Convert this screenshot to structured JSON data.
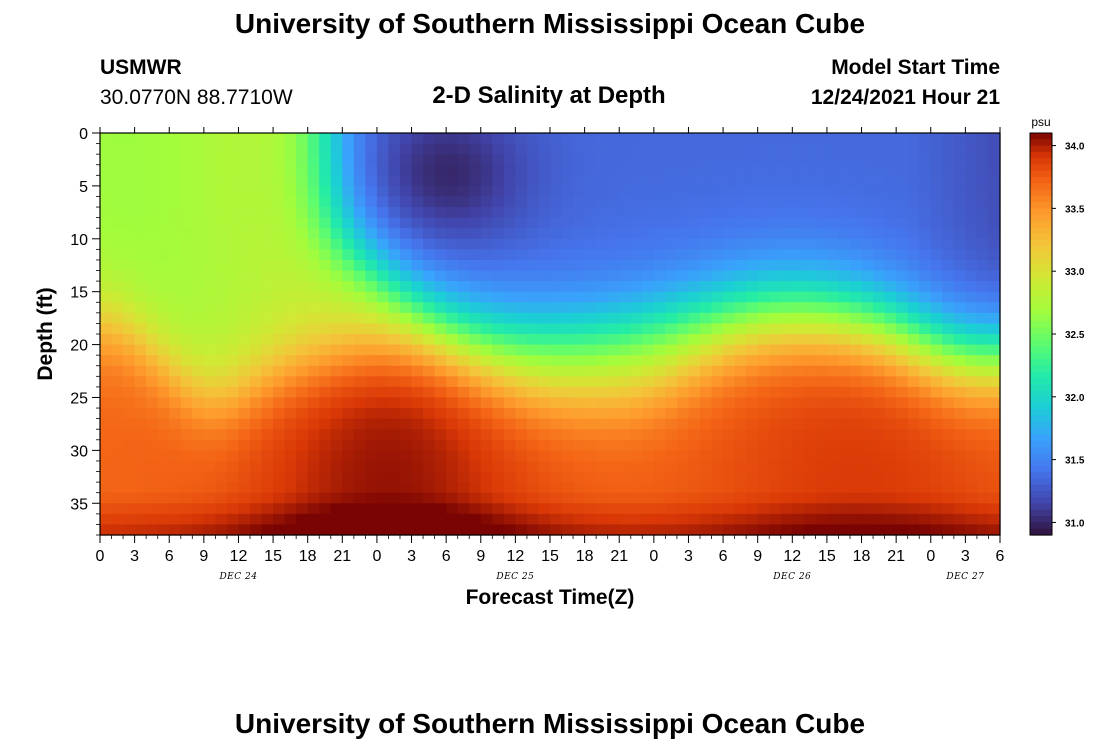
{
  "header": {
    "title": "University of Southern Mississippi Ocean Cube",
    "station": "USMWR",
    "coords": "30.0770N  88.7710W",
    "subtitle": "2-D Salinity at Depth",
    "start_label": "Model Start Time",
    "start_value": "12/24/2021 Hour 21"
  },
  "footer": {
    "title": "University of Southern Mississippi Ocean Cube"
  },
  "chart_data": {
    "type": "heatmap",
    "xlabel": "Forecast Time(Z)",
    "ylabel": "Depth (ft)",
    "x_hours_range": [
      0,
      78
    ],
    "ylim": [
      0,
      38
    ],
    "y_inverted": true,
    "x_ticks": [
      "0",
      "3",
      "6",
      "9",
      "12",
      "15",
      "18",
      "21",
      "0",
      "3",
      "6",
      "9",
      "12",
      "15",
      "18",
      "21",
      "0",
      "3",
      "6",
      "9",
      "12",
      "15",
      "18",
      "21",
      "0",
      "3",
      "6"
    ],
    "y_ticks": [
      0,
      5,
      10,
      15,
      20,
      25,
      30,
      35
    ],
    "day_labels": [
      {
        "label": "DEC 24",
        "hour": 12
      },
      {
        "label": "DEC 25",
        "hour": 36
      },
      {
        "label": "DEC 26",
        "hour": 60
      },
      {
        "label": "DEC 27",
        "hour": 75
      }
    ],
    "colorbar": {
      "unit": "psu",
      "min": 30.9,
      "max": 34.1,
      "ticks": [
        "34.0",
        "33.5",
        "33.0",
        "32.5",
        "32.0",
        "31.5",
        "31.0"
      ],
      "tick_values": [
        34.0,
        33.5,
        33.0,
        32.5,
        32.0,
        31.5,
        31.0
      ]
    },
    "field_description_values": {
      "surface_fresh_layer_min": 31.0,
      "surface_mixed_early": 32.8,
      "bottom_max": 34.0
    }
  }
}
